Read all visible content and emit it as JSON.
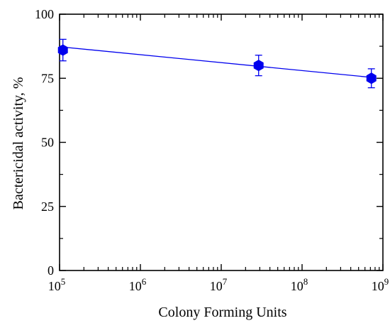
{
  "chart_data": {
    "type": "scatter",
    "xlabel": "Colony Forming Units",
    "ylabel": "Bactericidal activity, %",
    "xscale": "log",
    "xlim": [
      100000,
      1000000000
    ],
    "ylim": [
      0,
      100
    ],
    "x_ticks": [
      {
        "value": 100000,
        "base": "10",
        "exp": "5"
      },
      {
        "value": 1000000,
        "base": "10",
        "exp": "6"
      },
      {
        "value": 10000000,
        "base": "10",
        "exp": "7"
      },
      {
        "value": 100000000,
        "base": "10",
        "exp": "8"
      },
      {
        "value": 1000000000,
        "base": "10",
        "exp": "9"
      }
    ],
    "y_ticks": [
      {
        "value": 0,
        "label": "0"
      },
      {
        "value": 25,
        "label": "25"
      },
      {
        "value": 50,
        "label": "50"
      },
      {
        "value": 75,
        "label": "75"
      },
      {
        "value": 100,
        "label": "100"
      }
    ],
    "series": [
      {
        "points": [
          {
            "x": 110000,
            "y": 86,
            "err": 4.2
          },
          {
            "x": 29000000,
            "y": 80,
            "err": 4.0
          },
          {
            "x": 720000000,
            "y": 75,
            "err": 3.7
          }
        ],
        "color": "#0000ee",
        "marker": "hexagon",
        "fit_line": {
          "x": [
            100000,
            750000000
          ],
          "y": [
            87.3,
            75.3
          ]
        }
      }
    ],
    "grid": false
  }
}
